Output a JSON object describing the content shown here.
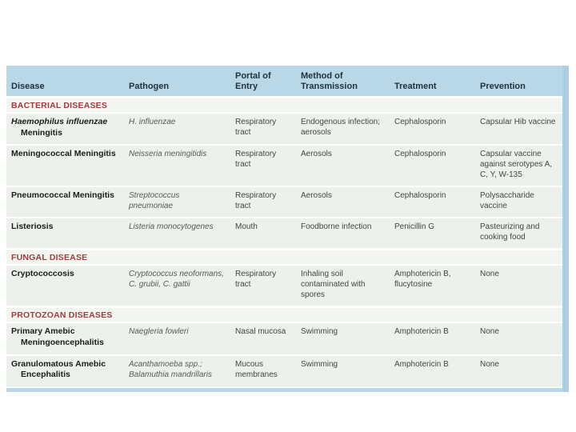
{
  "table": {
    "columns": [
      {
        "label": "Disease"
      },
      {
        "label": "Pathogen"
      },
      {
        "label": "Portal of\nEntry"
      },
      {
        "label": "Method of\nTransmission"
      },
      {
        "label": "Treatment"
      },
      {
        "label": "Prevention"
      }
    ],
    "sections": [
      {
        "title": "BACTERIAL DISEASES",
        "rows": [
          {
            "disease_italic": "Haemophilus influenzae",
            "disease_regular": "Meningitis",
            "pathogen": "H. influenzae",
            "portal_of_entry": "Respiratory tract",
            "method_of_transmission": "Endogenous infection; aerosols",
            "treatment": "Cephalosporin",
            "prevention": "Capsular Hib vaccine"
          },
          {
            "disease_italic": "",
            "disease_regular": "Meningococcal Meningitis",
            "pathogen": "Neisseria meningitidis",
            "portal_of_entry": "Respiratory tract",
            "method_of_transmission": "Aerosols",
            "treatment": "Cephalosporin",
            "prevention": "Capsular vaccine against serotypes A, C, Y, W-135"
          },
          {
            "disease_italic": "",
            "disease_regular": "Pneumococcal Meningitis",
            "pathogen": "Streptococcus pneumoniae",
            "portal_of_entry": "Respiratory tract",
            "method_of_transmission": "Aerosols",
            "treatment": "Cephalosporin",
            "prevention": "Polysaccharide vaccine"
          },
          {
            "disease_italic": "",
            "disease_regular": "Listeriosis",
            "pathogen": "Listeria monocytogenes",
            "portal_of_entry": "Mouth",
            "method_of_transmission": "Foodborne infection",
            "treatment": "Penicillin G",
            "prevention": "Pasteurizing and cooking food"
          }
        ]
      },
      {
        "title": "FUNGAL DISEASE",
        "rows": [
          {
            "disease_italic": "",
            "disease_regular": "Cryptococcosis",
            "pathogen": "Cryptococcus neoformans, C. grubii, C. gattii",
            "portal_of_entry": "Respiratory tract",
            "method_of_transmission": "Inhaling soil contaminated with spores",
            "treatment": "Amphotericin B, flucytosine",
            "prevention": "None"
          }
        ]
      },
      {
        "title": "PROTOZOAN DISEASES",
        "rows": [
          {
            "disease_italic": "",
            "disease_regular": "Primary Amebic Meningoencephalitis",
            "pathogen": "Naegleria fowleri",
            "portal_of_entry": "Nasal mucosa",
            "method_of_transmission": "Swimming",
            "treatment": "Amphotericin B",
            "prevention": "None"
          },
          {
            "disease_italic": "",
            "disease_regular": "Granulomatous Amebic Encephalitis",
            "pathogen": "Acanthamoeba spp.; Balamuthia mandrillaris",
            "portal_of_entry": "Mucous membranes",
            "method_of_transmission": "Swimming",
            "treatment": "Amphotericin B",
            "prevention": "None"
          }
        ]
      }
    ],
    "colors": {
      "header_bg": "#b8d8e8",
      "row_bg": "#ecf1ec",
      "section_band_bg": "#f2f5f0",
      "section_title": "#a23b3b",
      "accent_strip": "#aacfe2"
    }
  }
}
